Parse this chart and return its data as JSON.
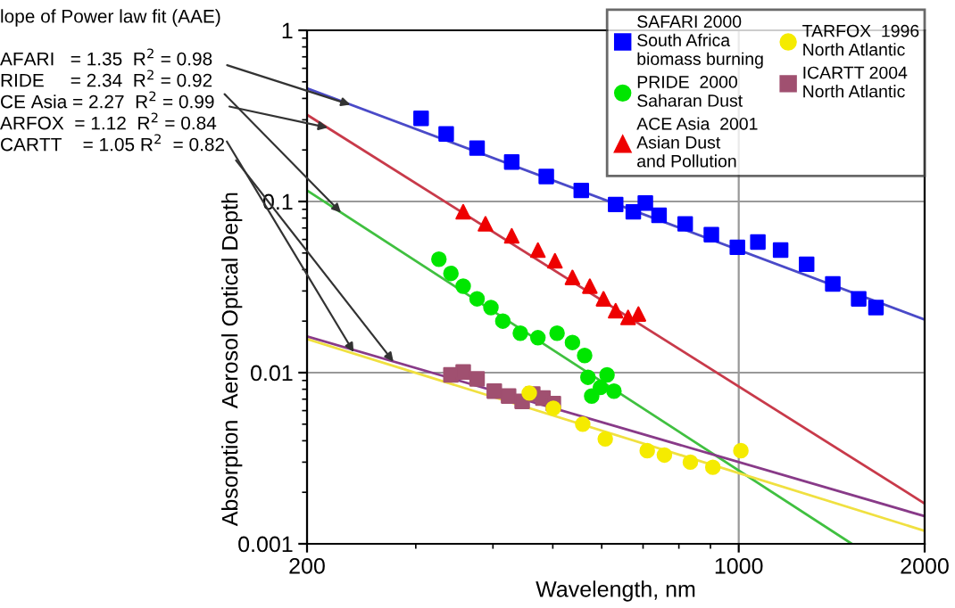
{
  "chart_data": {
    "type": "scatter",
    "xlabel": "Wavelength, nm",
    "ylabel": "Absorption  Aerosol Optical Depth",
    "log": "xy",
    "grid": true,
    "legend": "top right",
    "xlim": [
      200,
      2000
    ],
    "xticks": [
      200,
      1000,
      2000
    ],
    "ylim": [
      0.001,
      1
    ],
    "yticks": [
      {
        "value": 0.001,
        "label": "0.001"
      },
      {
        "value": 0.01,
        "label": "0.01"
      },
      {
        "value": 0.1,
        "label": "0.1"
      },
      {
        "value": 1,
        "label": "1"
      }
    ],
    "annotations": [
      "lope of Power law fit (AAE)",
      {
        "text": "AFARI   = 1.35  R$^{2}$ = 0.98",
        "x": 235,
        "y": 0.368
      },
      {
        "text": "RIDE     = 2.34  R$^{2}$ = 0.92",
        "x": 227,
        "y": 0.086
      },
      {
        "text": "CE Asia = 2.27  R$^{2}$ = 0.99",
        "x": 216,
        "y": 0.27
      },
      {
        "text": "ARFOX  = 1.12  R$^{2}$ = 0.84",
        "x": 238,
        "y": 0.0132
      },
      {
        "text": "CARTT    = 1.05 R$^{2}$  = 0.82",
        "x": 276,
        "y": 0.0116
      }
    ],
    "series": [
      {
        "name": "SAFARI 2000\nSouth Africa\nbiomass burning",
        "color": "#0000ff",
        "marker": "square",
        "x": [
          306,
          336,
          377,
          429,
          488,
          556,
          632,
          675,
          706,
          743,
          819,
          903,
          995,
          1074,
          1169,
          1288,
          1420,
          1564,
          1668
        ],
        "values": [
          0.306,
          0.248,
          0.205,
          0.17,
          0.14,
          0.116,
          0.096,
          0.087,
          0.098,
          0.083,
          0.074,
          0.064,
          0.054,
          0.058,
          0.052,
          0.043,
          0.033,
          0.027,
          0.024
        ]
      },
      {
        "name": "PRIDE  2000\nSaharan Dust",
        "color": "#00e600",
        "marker": "circle",
        "x": [
          327,
          342,
          358,
          377,
          397,
          415,
          443,
          473,
          508,
          538,
          563,
          570,
          578,
          597,
          612,
          628
        ],
        "values": [
          0.046,
          0.038,
          0.032,
          0.027,
          0.024,
          0.02,
          0.017,
          0.016,
          0.017,
          0.015,
          0.0126,
          0.0094,
          0.0073,
          0.0082,
          0.0097,
          0.0078
        ]
      },
      {
        "name": "ACE Asia  2001\nAsian Dust\nand Pollution",
        "color": "#ee0000",
        "marker": "triangle",
        "x": [
          358,
          389,
          429,
          473,
          504,
          538,
          574,
          604,
          632,
          662,
          688
        ],
        "values": [
          0.087,
          0.074,
          0.063,
          0.052,
          0.045,
          0.036,
          0.032,
          0.027,
          0.023,
          0.021,
          0.022
        ]
      },
      {
        "name": "TARFOX  1996\nNorth Atlantic",
        "color": "#f5eb00",
        "marker": "circle",
        "x": [
          458,
          501,
          559,
          608,
          711,
          758,
          835,
          908,
          1008
        ],
        "values": [
          0.0076,
          0.0062,
          0.005,
          0.0041,
          0.0035,
          0.0033,
          0.003,
          0.0028,
          0.0035
        ]
      },
      {
        "name": "ICARTT 2004\nNorth Atlantic",
        "color": "#a05070",
        "marker": "square",
        "x": [
          342,
          358,
          377,
          402,
          424,
          446,
          464,
          482,
          501
        ],
        "values": [
          0.0097,
          0.0101,
          0.0092,
          0.0078,
          0.0073,
          0.0068,
          0.0075,
          0.0071,
          0.0066
        ]
      },
      {
        "type": "line",
        "color": "#4a4ac8",
        "x": [
          200,
          2000
        ],
        "values": [
          0.458,
          0.0204
        ]
      },
      {
        "type": "line",
        "color": "#c83a4a",
        "x": [
          200,
          2000
        ],
        "values": [
          0.321,
          0.00172
        ]
      },
      {
        "type": "line",
        "color": "#40c040",
        "x": [
          200,
          1524
        ],
        "values": [
          0.116,
          0.001
        ]
      },
      {
        "type": "line",
        "color": "#f0e040",
        "x": [
          200,
          2000
        ],
        "values": [
          0.0157,
          0.00119
        ]
      },
      {
        "type": "line",
        "color": "#883a88",
        "x": [
          200,
          2000
        ],
        "values": [
          0.0163,
          0.00145
        ]
      }
    ]
  }
}
